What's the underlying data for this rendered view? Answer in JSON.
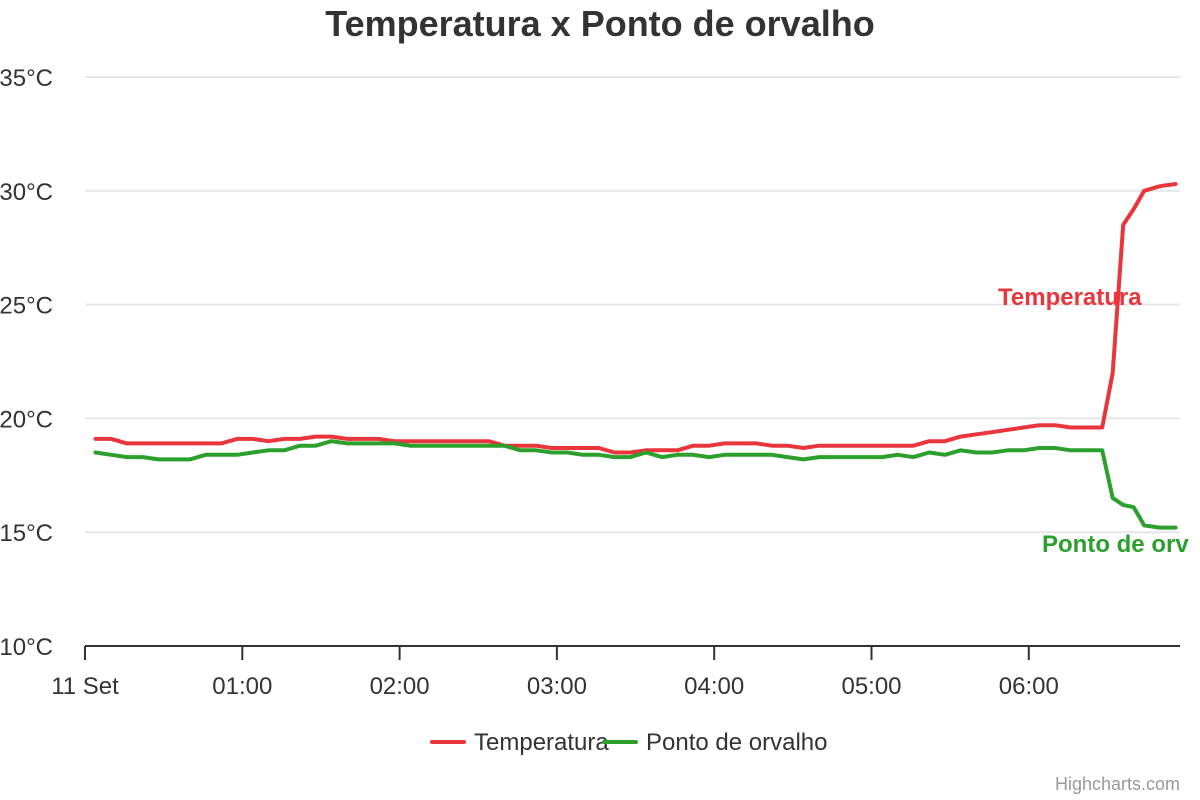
{
  "chart_data": {
    "type": "line",
    "title": "Temperatura x Ponto de orvalho",
    "xlabel": "",
    "ylabel": "",
    "x_ticks": [
      "11 Set",
      "01:00",
      "02:00",
      "03:00",
      "04:00",
      "05:00",
      "06:00"
    ],
    "y_ticks": [
      "10°C",
      "15°C",
      "20°C",
      "25°C",
      "30°C",
      "35°C"
    ],
    "ylim": [
      10,
      35
    ],
    "xlim": [
      "00:00",
      "06:57"
    ],
    "y_unit": "°C",
    "grid": true,
    "legend_position": "bottom",
    "x": [
      "00:04",
      "00:10",
      "00:16",
      "00:22",
      "00:28",
      "00:34",
      "00:40",
      "00:46",
      "00:52",
      "00:58",
      "01:04",
      "01:10",
      "01:16",
      "01:22",
      "01:28",
      "01:34",
      "01:40",
      "01:46",
      "01:52",
      "01:58",
      "02:04",
      "02:10",
      "02:16",
      "02:22",
      "02:28",
      "02:34",
      "02:40",
      "02:46",
      "02:52",
      "02:58",
      "03:04",
      "03:10",
      "03:16",
      "03:22",
      "03:28",
      "03:34",
      "03:40",
      "03:46",
      "03:52",
      "03:58",
      "04:04",
      "04:10",
      "04:16",
      "04:22",
      "04:28",
      "04:34",
      "04:40",
      "04:46",
      "04:52",
      "04:58",
      "05:04",
      "05:10",
      "05:16",
      "05:22",
      "05:28",
      "05:34",
      "05:40",
      "05:46",
      "05:52",
      "05:58",
      "06:04",
      "06:10",
      "06:16",
      "06:20",
      "06:24",
      "06:28",
      "06:32",
      "06:36",
      "06:40",
      "06:44",
      "06:50",
      "06:56"
    ],
    "series": [
      {
        "name": "Temperatura",
        "color": "#e8363c",
        "values": [
          19.1,
          19.1,
          18.9,
          18.9,
          18.9,
          18.9,
          18.9,
          18.9,
          18.9,
          19.1,
          19.1,
          19.0,
          19.1,
          19.1,
          19.2,
          19.2,
          19.1,
          19.1,
          19.1,
          19.0,
          19.0,
          19.0,
          19.0,
          19.0,
          19.0,
          19.0,
          18.8,
          18.8,
          18.8,
          18.7,
          18.7,
          18.7,
          18.7,
          18.5,
          18.5,
          18.6,
          18.6,
          18.6,
          18.8,
          18.8,
          18.9,
          18.9,
          18.9,
          18.8,
          18.8,
          18.7,
          18.8,
          18.8,
          18.8,
          18.8,
          18.8,
          18.8,
          18.8,
          19.0,
          19.0,
          19.2,
          19.3,
          19.4,
          19.5,
          19.6,
          19.7,
          19.7,
          19.6,
          19.6,
          19.6,
          19.6,
          22.0,
          28.5,
          29.2,
          30.0,
          30.2,
          30.3
        ]
      },
      {
        "name": "Ponto de orvalho",
        "color": "#2ca02c",
        "values": [
          18.5,
          18.4,
          18.3,
          18.3,
          18.2,
          18.2,
          18.2,
          18.4,
          18.4,
          18.4,
          18.5,
          18.6,
          18.6,
          18.8,
          18.8,
          19.0,
          18.9,
          18.9,
          18.9,
          18.9,
          18.8,
          18.8,
          18.8,
          18.8,
          18.8,
          18.8,
          18.8,
          18.6,
          18.6,
          18.5,
          18.5,
          18.4,
          18.4,
          18.3,
          18.3,
          18.5,
          18.3,
          18.4,
          18.4,
          18.3,
          18.4,
          18.4,
          18.4,
          18.4,
          18.3,
          18.2,
          18.3,
          18.3,
          18.3,
          18.3,
          18.3,
          18.4,
          18.3,
          18.5,
          18.4,
          18.6,
          18.5,
          18.5,
          18.6,
          18.6,
          18.7,
          18.7,
          18.6,
          18.6,
          18.6,
          18.6,
          16.5,
          16.2,
          16.1,
          15.3,
          15.2,
          15.2
        ]
      }
    ],
    "series_labels": [
      "Temperatura",
      "Ponto de orv"
    ],
    "credits": "Highcharts.com"
  }
}
